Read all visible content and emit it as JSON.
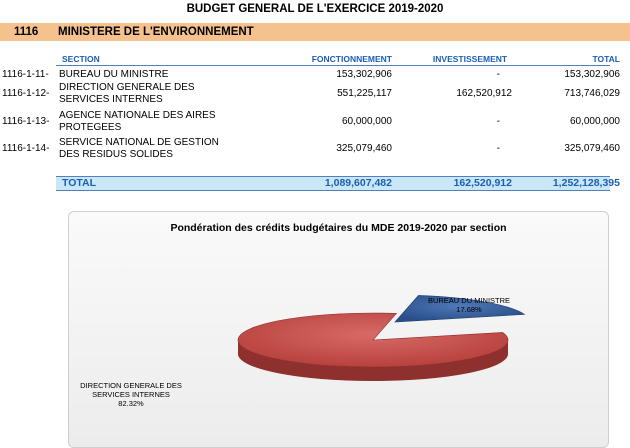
{
  "document": {
    "title": "BUDGET GENERAL DE L'EXERCICE 2019-2020",
    "ministry_code": "1116",
    "ministry_name": "MINISTERE DE L'ENVIRONNEMENT"
  },
  "table": {
    "headers": {
      "section": "SECTION",
      "fonctionnement": "FONCTIONNEMENT",
      "investissement": "INVESTISSEMENT",
      "total": "TOTAL"
    },
    "rows": [
      {
        "code": "1116-1-11-",
        "line1": "BUREAU DU MINISTRE",
        "line2": "",
        "fonctionnement": "153,302,906",
        "investissement": "-",
        "total": "153,302,906"
      },
      {
        "code": "1116-1-12-",
        "line1": "DIRECTION GENERALE DES",
        "line2": "SERVICES INTERNES",
        "fonctionnement": "551,225,117",
        "investissement": "162,520,912",
        "total": "713,746,029"
      },
      {
        "code": "1116-1-13-",
        "line1": "AGENCE NATIONALE DES AIRES",
        "line2": "PROTEGEES",
        "fonctionnement": "60,000,000",
        "investissement": "-",
        "total": "60,000,000"
      },
      {
        "code": "1116-1-14-",
        "line1": "SERVICE NATIONAL DE GESTION",
        "line2": "DES RESIDUS SOLIDES",
        "fonctionnement": "325,079,460",
        "investissement": "-",
        "total": "325,079,460"
      }
    ],
    "total_row": {
      "label": "TOTAL",
      "fonctionnement": "1,089,607,482",
      "investissement": "162,520,912",
      "total": "1,252,128,395"
    }
  },
  "chart_data": {
    "type": "pie",
    "title": "Pondération des crédits budgétaires du MDE 2019-2020 par section",
    "slices": [
      {
        "label": "BUREAU DU MINISTRE",
        "percent_label": "17.68%",
        "value": 17.68,
        "color": "#2f5597"
      },
      {
        "label": "DIRECTION GENERALE DES SERVICES INTERNES",
        "percent_label": "82.32%",
        "value": 82.32,
        "color": "#c0504d"
      }
    ]
  }
}
